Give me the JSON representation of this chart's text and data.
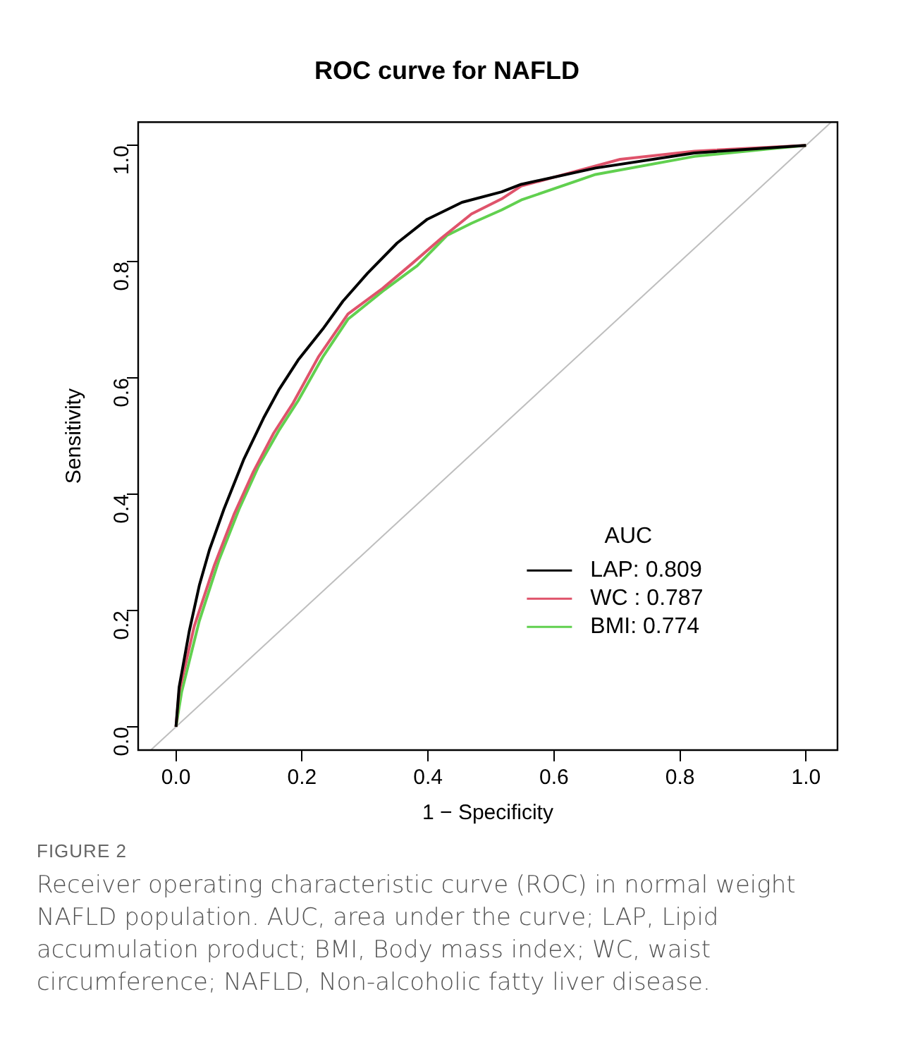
{
  "chart_data": {
    "type": "line",
    "title": "ROC curve for NAFLD",
    "xlabel": "1 − Specificity",
    "ylabel": "Sensitivity",
    "legend_title": "AUC",
    "legend": "right",
    "grid": false,
    "marker": "none",
    "line_style": "solid",
    "xlim": [
      -0.06,
      1.05
    ],
    "ylim": [
      -0.04,
      1.04
    ],
    "xticks": [
      {
        "value": 0,
        "label": "0.0"
      },
      {
        "value": 0.2,
        "label": "0.2"
      },
      {
        "value": 0.4,
        "label": "0.4"
      },
      {
        "value": 0.6,
        "label": "0.6"
      },
      {
        "value": 0.8,
        "label": "0.8"
      },
      {
        "value": 1,
        "label": "1.0"
      }
    ],
    "yticks": [
      {
        "value": 0,
        "label": "0.0"
      },
      {
        "value": 0.2,
        "label": "0.2"
      },
      {
        "value": 0.4,
        "label": "0.4"
      },
      {
        "value": 0.6,
        "label": "0.6"
      },
      {
        "value": 0.8,
        "label": "0.8"
      },
      {
        "value": 1,
        "label": "1.0"
      }
    ],
    "series": [
      {
        "name": "LAP: 0.809",
        "color": "#000000",
        "x": [
          0,
          0.005,
          0.021,
          0.037,
          0.053,
          0.076,
          0.108,
          0.139,
          0.163,
          0.194,
          0.233,
          0.265,
          0.304,
          0.351,
          0.399,
          0.454,
          0.517,
          0.548,
          0.666,
          0.823,
          1
        ],
        "values": [
          0,
          0.068,
          0.164,
          0.243,
          0.304,
          0.374,
          0.461,
          0.531,
          0.579,
          0.631,
          0.684,
          0.732,
          0.78,
          0.832,
          0.873,
          0.902,
          0.92,
          0.933,
          0.961,
          0.987,
          1
        ]
      },
      {
        "name": "WC : 0.787",
        "color": "#df536b",
        "x": [
          0,
          0.005,
          0.029,
          0.061,
          0.092,
          0.123,
          0.155,
          0.186,
          0.226,
          0.273,
          0.328,
          0.375,
          0.422,
          0.469,
          0.517,
          0.548,
          0.705,
          0.823,
          1
        ],
        "values": [
          0,
          0.06,
          0.173,
          0.278,
          0.365,
          0.439,
          0.505,
          0.557,
          0.636,
          0.71,
          0.754,
          0.797,
          0.841,
          0.882,
          0.908,
          0.93,
          0.976,
          0.99,
          1
        ]
      },
      {
        "name": "BMI: 0.774",
        "color": "#61d04f",
        "x": [
          0,
          0.009,
          0.037,
          0.068,
          0.1,
          0.131,
          0.163,
          0.194,
          0.233,
          0.273,
          0.328,
          0.383,
          0.43,
          0.469,
          0.517,
          0.548,
          0.666,
          0.823,
          0.941,
          1
        ],
        "values": [
          0,
          0.06,
          0.182,
          0.286,
          0.374,
          0.448,
          0.509,
          0.561,
          0.636,
          0.701,
          0.749,
          0.793,
          0.845,
          0.866,
          0.889,
          0.906,
          0.95,
          0.981,
          0.994,
          1
        ]
      },
      {
        "color": "#bebebe",
        "x": [
          -0.04,
          1.04
        ],
        "values": [
          -0.04,
          1.04
        ]
      }
    ],
    "annotations": [
      "FIGURE 2",
      "Receiver operating characteristic curve (ROC) in normal weight NAFLD population. AUC, area under the curve; LAP, Lipid accumulation product; BMI, Body mass index; WC, waist circumference; NAFLD, Non-alcoholic fatty liver disease."
    ]
  }
}
